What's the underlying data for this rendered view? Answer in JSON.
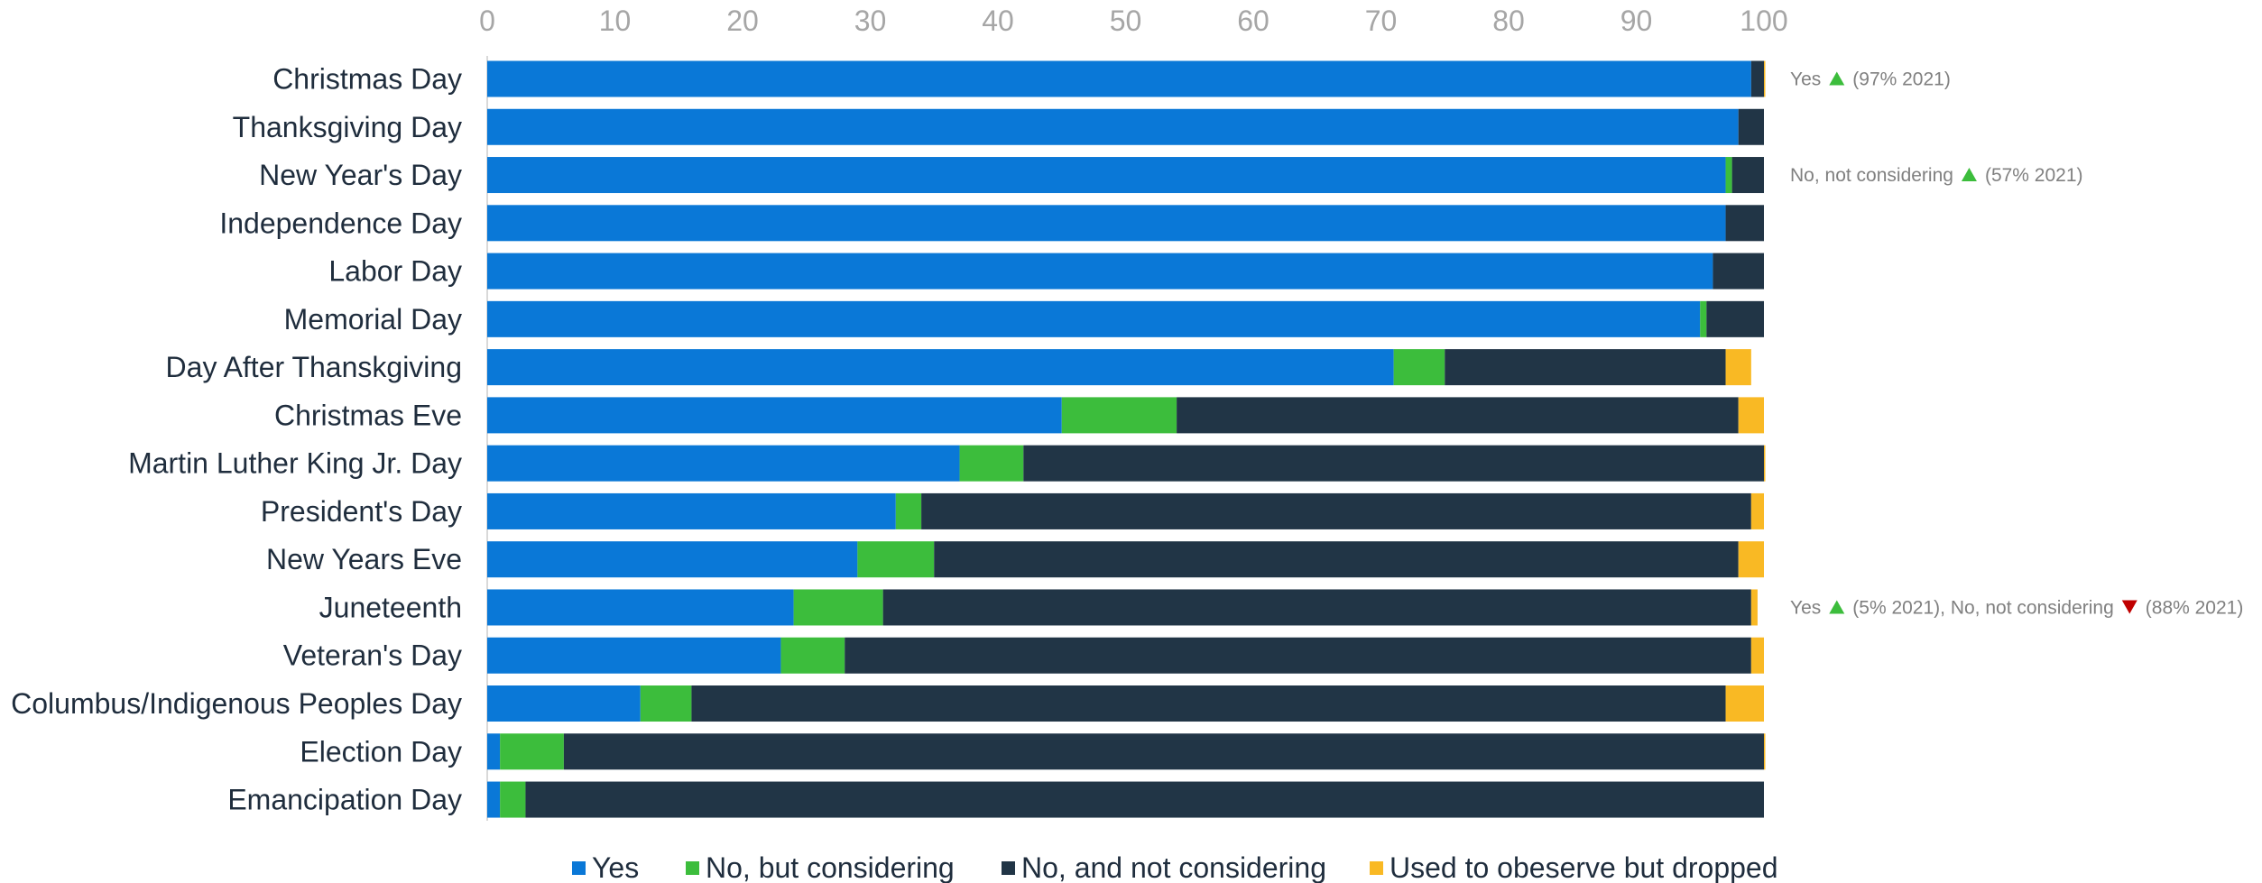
{
  "chart_data": {
    "type": "bar",
    "orientation": "horizontal",
    "stacked": true,
    "xlim": [
      0,
      100
    ],
    "ticks": [
      0,
      10,
      20,
      30,
      40,
      50,
      60,
      70,
      80,
      90,
      100
    ],
    "tick_labels": [
      "0",
      "10",
      "20",
      "30",
      "40",
      "50",
      "60",
      "70",
      "80",
      "90",
      "100"
    ],
    "grid": false,
    "legend_position": "bottom",
    "categories": [
      "Christmas Day",
      "Thanksgiving Day",
      "New Year's Day",
      "Independence Day",
      "Labor Day",
      "Memorial Day",
      "Day After Thanskgiving",
      "Christmas Eve",
      "Martin Luther King Jr. Day",
      "President's Day",
      "New Years Eve",
      "Juneteenth",
      "Veteran's Day",
      "Columbus/Indigenous Peoples Day",
      "Election Day",
      "Emancipation Day"
    ],
    "series": [
      {
        "name": "Yes",
        "color": "#0a78d7",
        "values": [
          99,
          98,
          97,
          97,
          96,
          95,
          71,
          45,
          37,
          32,
          29,
          24,
          23,
          12,
          1,
          1
        ]
      },
      {
        "name": "No, but considering",
        "color": "#3cbd3c",
        "values": [
          0,
          0,
          0.5,
          0,
          0,
          0.5,
          4,
          9,
          5,
          2,
          6,
          7,
          5,
          4,
          5,
          2
        ]
      },
      {
        "name": "No, and not considering",
        "color": "#213546",
        "values": [
          1,
          2,
          2.5,
          3,
          4,
          4.5,
          22,
          44,
          58,
          65,
          63,
          68,
          71,
          81,
          94,
          97
        ]
      },
      {
        "name": "Used to obeserve but dropped",
        "color": "#f9b924",
        "values": [
          0.1,
          0,
          0,
          0,
          0,
          0,
          2,
          2,
          0.1,
          1,
          2,
          0.5,
          1,
          3,
          0.1,
          0
        ]
      }
    ],
    "annotations": [
      {
        "category_index": 0,
        "parts": [
          {
            "text": "Yes"
          },
          {
            "marker": "up",
            "color": "#3cbd3c"
          },
          {
            "text": "(97% 2021)"
          }
        ]
      },
      {
        "category_index": 2,
        "parts": [
          {
            "text": "No, not considering"
          },
          {
            "marker": "up",
            "color": "#3cbd3c"
          },
          {
            "text": "(57% 2021)"
          }
        ]
      },
      {
        "category_index": 11,
        "parts": [
          {
            "text": "Yes"
          },
          {
            "marker": "up",
            "color": "#3cbd3c"
          },
          {
            "text": "(5% 2021), No, not considering"
          },
          {
            "marker": "down",
            "color": "#c00000"
          },
          {
            "text": "(88% 2021)"
          }
        ]
      }
    ]
  }
}
